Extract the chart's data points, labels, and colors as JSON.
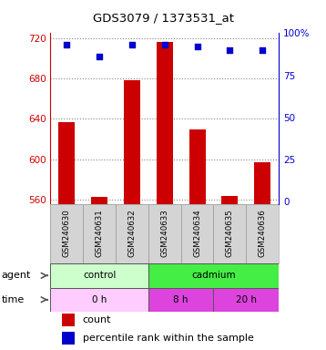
{
  "title": "GDS3079 / 1373531_at",
  "samples": [
    "GSM240630",
    "GSM240631",
    "GSM240632",
    "GSM240633",
    "GSM240634",
    "GSM240635",
    "GSM240636"
  ],
  "counts": [
    637,
    563,
    678,
    716,
    630,
    564,
    597
  ],
  "percentiles": [
    93,
    86,
    93,
    93,
    92,
    90,
    90
  ],
  "ylim_left": [
    555,
    725
  ],
  "yticks_left": [
    560,
    600,
    640,
    680,
    720
  ],
  "ylim_right": [
    -2.125,
    100
  ],
  "yticks_right": [
    0,
    25,
    50,
    75,
    100
  ],
  "bar_color": "#cc0000",
  "dot_color": "#0000cc",
  "left_axis_color": "#cc0000",
  "right_axis_color": "#0000cc",
  "grid_color": "#888888",
  "background_color": "#ffffff",
  "bar_width": 0.5,
  "ybase": 555,
  "control_color_light": "#ccffcc",
  "cadmium_color": "#44ee44",
  "time_0h_color": "#ffccff",
  "time_8h_color": "#dd44dd",
  "time_20h_color": "#dd44dd",
  "sample_bg_color": "#d4d4d4",
  "legend_count_label": "count",
  "legend_pct_label": "percentile rank within the sample"
}
